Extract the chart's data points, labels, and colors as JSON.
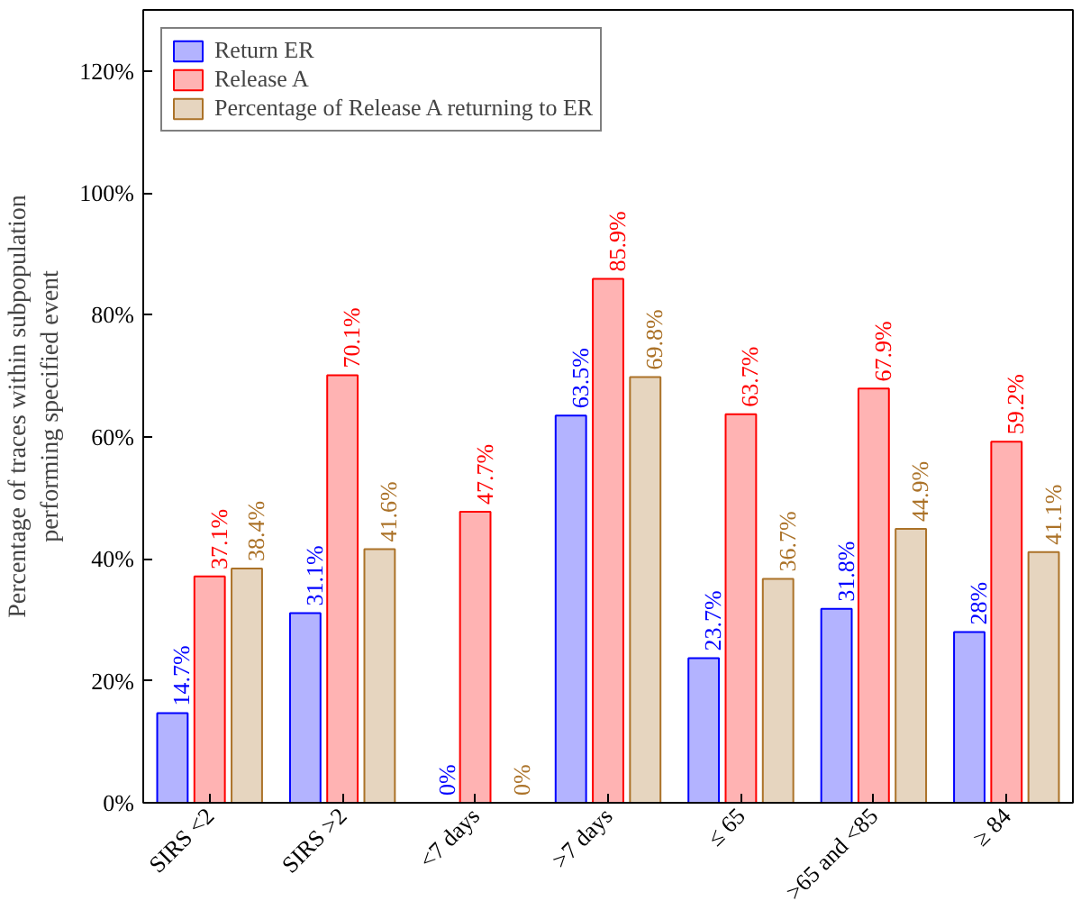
{
  "chart_data": {
    "type": "bar",
    "ylabel": "Percentage of traces within subpopulation\nperforming specified event",
    "categories": [
      "SIRS <2",
      "SIRS >2",
      "<7 days",
      ">7 days",
      "≤ 65",
      ">65 and <85",
      "≥ 84"
    ],
    "series": [
      {
        "name": "Return ER",
        "color": "#b3b3ff",
        "values": [
          14.7,
          31.1,
          0,
          63.5,
          23.7,
          31.8,
          28
        ],
        "value_labels": [
          "14.7%",
          "31.1%",
          "0%",
          "63.5%",
          "23.7%",
          "31.8%",
          "28%"
        ]
      },
      {
        "name": "Release A",
        "color": "#ffb3b3",
        "values": [
          37.1,
          70.1,
          47.7,
          85.9,
          63.7,
          67.9,
          59.2
        ],
        "value_labels": [
          "37.1%",
          "70.1%",
          "47.7%",
          "85.9%",
          "63.7%",
          "67.9%",
          "59.2%"
        ]
      },
      {
        "name": "Percentage of Release A returning to ER",
        "color": "#e6d5bf",
        "values": [
          38.4,
          41.6,
          0,
          69.8,
          36.7,
          44.9,
          41.1
        ],
        "value_labels": [
          "38.4%",
          "41.6%",
          "0%",
          "69.8%",
          "36.7%",
          "44.9%",
          "41.1%"
        ]
      }
    ],
    "ylim": [
      0,
      130
    ],
    "yticks": [
      {
        "value": 0,
        "label": "0%"
      },
      {
        "value": 20,
        "label": "20%"
      },
      {
        "value": 40,
        "label": "40%"
      },
      {
        "value": 60,
        "label": "60%"
      },
      {
        "value": 80,
        "label": "80%"
      },
      {
        "value": 100,
        "label": "100%"
      },
      {
        "value": 120,
        "label": "120%"
      }
    ],
    "grid": false,
    "legend": "top left"
  }
}
